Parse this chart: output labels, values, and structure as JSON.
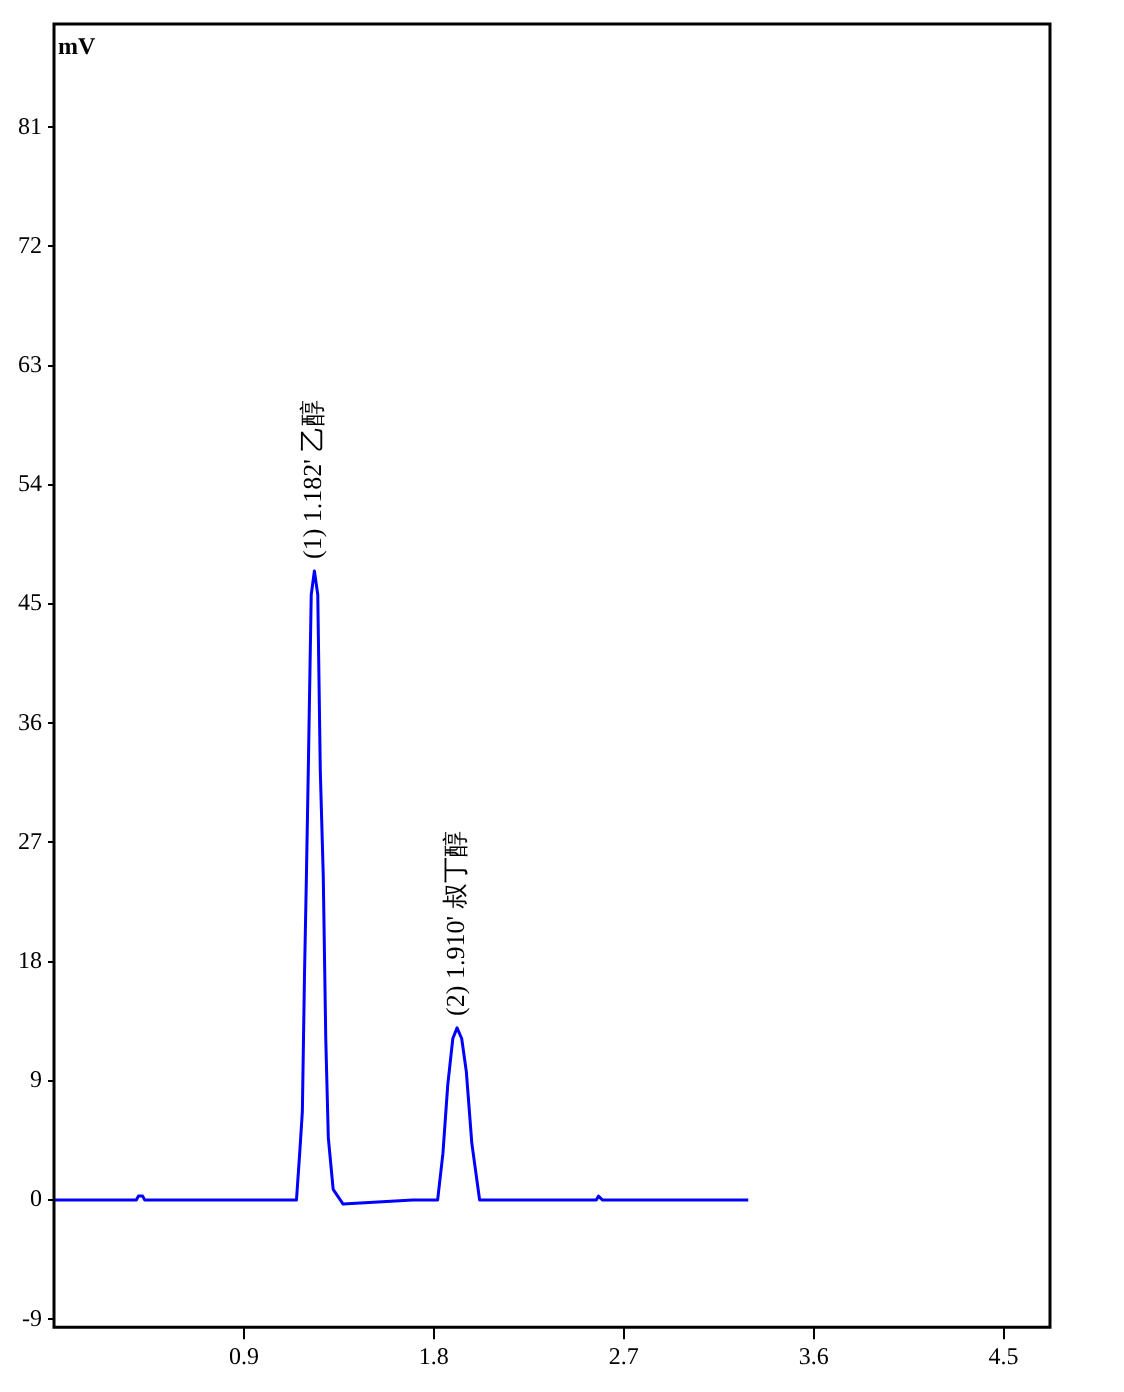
{
  "chart_data": {
    "type": "line",
    "ylabel": "mV",
    "xlim": [
      0,
      4.72
    ],
    "xticks": [
      0.9,
      1.8,
      2.7,
      3.6,
      4.5
    ],
    "ylim": [
      -9.6,
      88.8
    ],
    "yticks": [
      -9,
      0,
      9,
      18,
      27,
      36,
      45,
      54,
      63,
      72,
      81
    ],
    "grid": false,
    "legend": false,
    "marker": "none",
    "line_style": "solid",
    "series": [
      {
        "color": "#0000ff",
        "x": [
          0,
          0.39,
          0.4,
          0.42,
          0.43,
          1.149,
          1.165,
          1.177,
          1.187,
          1.196,
          1.205,
          1.219,
          1.234,
          1.25,
          1.262,
          1.276,
          1.288,
          1.3,
          1.323,
          1.37,
          1.7,
          1.818,
          1.843,
          1.866,
          1.89,
          1.91,
          1.932,
          1.954,
          1.98,
          2.017,
          2.57,
          2.58,
          2.6,
          3.29
        ],
        "values": [
          0,
          0,
          0.3,
          0.3,
          0,
          0,
          3.7,
          6.7,
          16.9,
          24.3,
          32.4,
          45.7,
          47.5,
          45.7,
          32.4,
          24.5,
          12.1,
          4.7,
          0.8,
          -0.3,
          0,
          0,
          3.5,
          8.7,
          12.2,
          13,
          12.2,
          9.7,
          4.3,
          0,
          0,
          0.3,
          0,
          0
        ]
      }
    ],
    "annotations": [
      {
        "text": "(1) 1.182' 乙醇",
        "x": 1.234,
        "y": 47.5
      },
      {
        "text": "(2) 1.910' 叔丁醇",
        "x": 1.91,
        "y": 13
      }
    ]
  }
}
